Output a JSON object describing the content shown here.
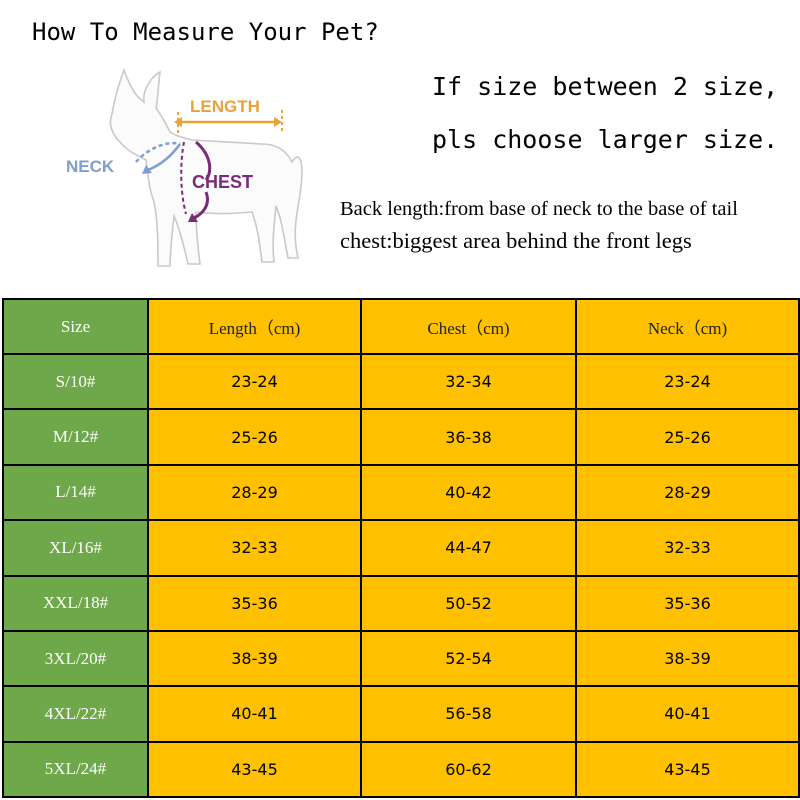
{
  "title": "How To Measure Your Pet?",
  "notes": [
    "If size between 2 size,",
    "pls choose larger size."
  ],
  "definitions": [
    "Back length:from base of neck to the base of tail",
    "chest:biggest area behind the front legs"
  ],
  "diagram": {
    "length_label": "LENGTH",
    "neck_label": "NECK",
    "chest_label": "CHEST",
    "colors": {
      "length": "#e8a33a",
      "neck": "#7d9fcf",
      "chest": "#7a2a78"
    }
  },
  "colors": {
    "size_column": "#6fa84a",
    "value_cells": "#ffc000"
  },
  "table": {
    "headers": [
      "Size",
      "Length（cm)",
      "Chest（cm)",
      "Neck（cm)"
    ],
    "rows": [
      [
        "S/10#",
        "23-24",
        "32-34",
        "23-24"
      ],
      [
        "M/12#",
        "25-26",
        "36-38",
        "25-26"
      ],
      [
        "L/14#",
        "28-29",
        "40-42",
        "28-29"
      ],
      [
        "XL/16#",
        "32-33",
        "44-47",
        "32-33"
      ],
      [
        "XXL/18#",
        "35-36",
        "50-52",
        "35-36"
      ],
      [
        "3XL/20#",
        "38-39",
        "52-54",
        "38-39"
      ],
      [
        "4XL/22#",
        "40-41",
        "56-58",
        "40-41"
      ],
      [
        "5XL/24#",
        "43-45",
        "60-62",
        "43-45"
      ]
    ]
  }
}
